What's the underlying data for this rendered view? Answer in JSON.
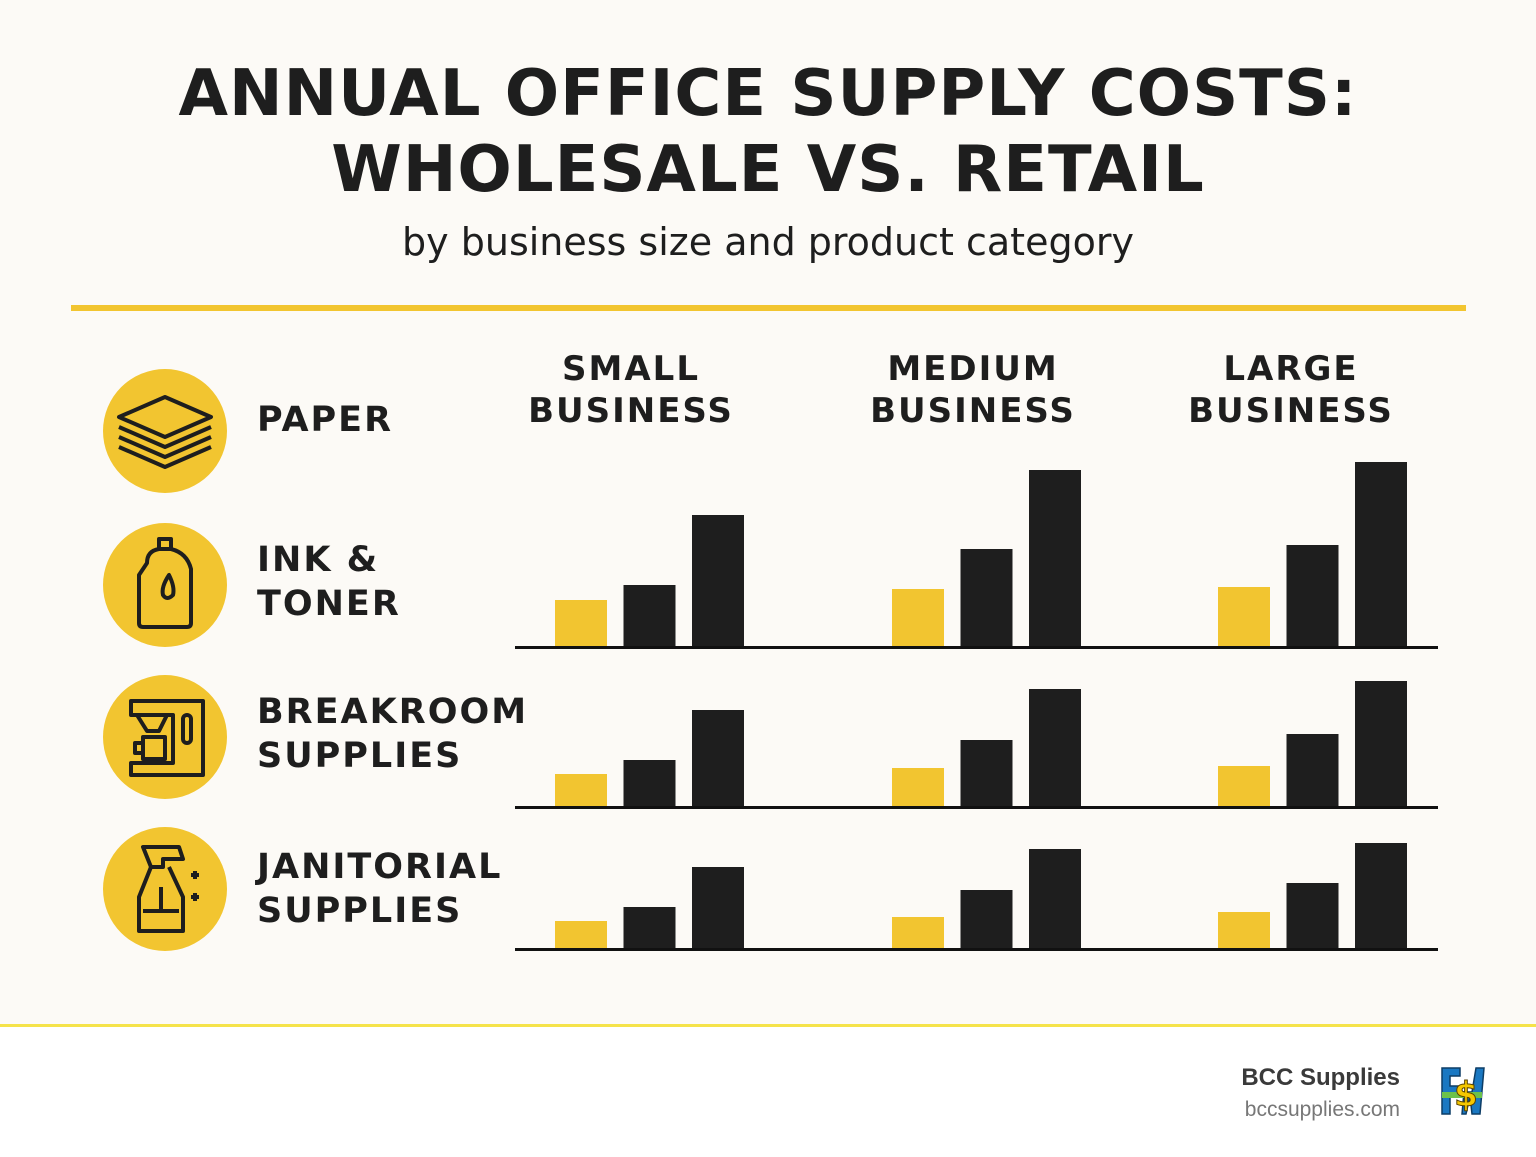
{
  "header": {
    "title_line1": "ANNUAL OFFICE SUPPLY COSTS:",
    "title_line2": "WHOLESALE VS. RETAIL",
    "subtitle": "by business size and product category"
  },
  "chart_data": {
    "type": "bar",
    "title": "ANNUAL OFFICE SUPPLY COSTS: WHOLESALE VS. RETAIL",
    "subtitle": "by business size and product category",
    "note": "No axis or numeric labels are printed; values are relative bar heights",
    "groups": [
      "SMALL BUSINESS",
      "MEDIUM BUSINESS",
      "LARGE BUSINESS"
    ],
    "group_lines": [
      [
        "SMALL",
        "BUSINESS"
      ],
      [
        "MEDIUM",
        "BUSINESS"
      ],
      [
        "LARGE",
        "BUSINESS"
      ]
    ],
    "categories": [
      {
        "lines": [
          "PAPER"
        ],
        "icon": "paper-stack-icon"
      },
      {
        "lines": [
          "INK &",
          "TONER"
        ],
        "icon": "ink-bottle-icon"
      },
      {
        "lines": [
          "BREAKROOM",
          "SUPPLIES"
        ],
        "icon": "coffee-machine-icon"
      },
      {
        "lines": [
          "JANITORIAL",
          "SUPPLIES"
        ],
        "icon": "spray-bottle-icon"
      }
    ],
    "bar_colors": [
      "#f2c530",
      "#1e1e1e",
      "#1e1e1e"
    ],
    "rows": [
      {
        "values": [
          [
            47,
            62,
            132
          ],
          [
            58,
            98,
            177
          ],
          [
            60,
            102,
            185
          ]
        ]
      },
      {
        "values": [
          [
            33,
            47,
            97
          ],
          [
            39,
            67,
            118
          ],
          [
            41,
            73,
            126
          ]
        ]
      },
      {
        "values": [
          [
            28,
            42,
            82
          ],
          [
            32,
            59,
            100
          ],
          [
            37,
            66,
            106
          ]
        ]
      }
    ],
    "grid": false
  },
  "footer": {
    "brand": "BCC Supplies",
    "url": "bccsupplies.com",
    "logo_text": "F$W"
  },
  "colors": {
    "accent": "#f2c530",
    "dark": "#1e1e1e",
    "background": "#fcfaf6"
  }
}
